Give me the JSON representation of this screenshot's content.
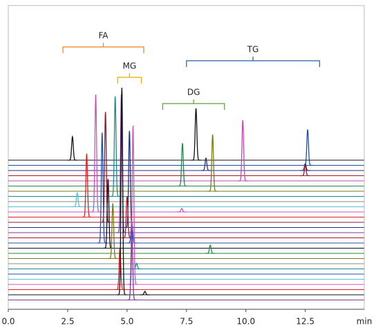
{
  "chart_data": {
    "type": "stacked-chromatogram",
    "xlabel": "min",
    "xlim": [
      0,
      15
    ],
    "xticks": [
      {
        "value": 0,
        "label": "0.0"
      },
      2.5,
      {
        "value": 5,
        "label": "5.0"
      },
      7.5,
      {
        "value": 10,
        "label": "10.0"
      },
      12.5
    ],
    "annotations": [
      {
        "text": "FA",
        "color": "#f07f1a",
        "range": [
          2.3,
          5.7
        ]
      },
      {
        "text": "TG",
        "color": "#1f5fa8",
        "range": [
          7.5,
          13.1
        ]
      },
      {
        "text": "MG",
        "color": "#f0a800",
        "range": [
          4.6,
          5.6
        ]
      },
      {
        "text": "DG",
        "color": "#5aa02c",
        "range": [
          6.5,
          9.1
        ]
      }
    ],
    "series": [
      {
        "color": "#111111",
        "peaks": [
          2.7,
          7.9
        ],
        "heights": [
          34,
          75
        ]
      },
      {
        "color": "#1f4fa0",
        "peaks": [
          12.6
        ],
        "heights": [
          52
        ]
      },
      {
        "color": "#23307a",
        "peaks": [
          8.32,
          12.5
        ],
        "heights": [
          18,
          10
        ]
      },
      {
        "color": "#a01c2c",
        "peaks": [
          12.5
        ],
        "heights": [
          15
        ]
      },
      {
        "color": "#c04ab0",
        "peaks": [
          9.87
        ],
        "heights": [
          88
        ]
      },
      {
        "color": "#1e8a4a",
        "peaks": [
          7.33
        ],
        "heights": [
          62
        ]
      },
      {
        "color": "#7a7a1a",
        "peaks": [
          8.6
        ],
        "heights": [
          82
        ]
      },
      {
        "color": "#1a8a8a",
        "peaks": [
          4.5
        ],
        "heights": [
          145
        ]
      },
      {
        "color": "#8a8a8a",
        "peaks": [],
        "heights": []
      },
      {
        "color": "#5ac0d8",
        "peaks": [
          2.9
        ],
        "heights": [
          20
        ]
      },
      {
        "color": "#d050c0",
        "peaks": [
          3.68,
          7.3
        ],
        "heights": [
          170,
          5
        ]
      },
      {
        "color": "#e02020",
        "peaks": [
          3.3
        ],
        "heights": [
          92
        ]
      },
      {
        "color": "#901830",
        "peaks": [
          4.09
        ],
        "heights": [
          160
        ]
      },
      {
        "color": "#203080",
        "peaks": [
          5.1
        ],
        "heights": [
          140
        ]
      },
      {
        "color": "#7a3aa0",
        "peaks": [
          4.76
        ],
        "heights": [
          200
        ]
      },
      {
        "color": "#a01c2c",
        "peaks": [
          5.0
        ],
        "heights": [
          60
        ]
      },
      {
        "color": "#2050b0",
        "peaks": [
          3.95,
          5.2
        ],
        "heights": [
          160,
          30
        ]
      },
      {
        "color": "#111111",
        "peaks": [
          4.2
        ],
        "heights": [
          100
        ]
      },
      {
        "color": "#1e8a4a",
        "peaks": [
          8.5
        ],
        "heights": [
          12
        ]
      },
      {
        "color": "#7a7a1a",
        "peaks": [
          4.4
        ],
        "heights": [
          80
        ]
      },
      {
        "color": "#8a8a8a",
        "peaks": [],
        "heights": []
      },
      {
        "color": "#1a8a8a",
        "peaks": [
          5.4
        ],
        "heights": [
          8
        ]
      },
      {
        "color": "#2050b0",
        "peaks": [],
        "heights": []
      },
      {
        "color": "#5ac0d8",
        "peaks": [],
        "heights": []
      },
      {
        "color": "#d050c0",
        "peaks": [
          5.25
        ],
        "heights": [
          230
        ]
      },
      {
        "color": "#e02020",
        "peaks": [
          4.7
        ],
        "heights": [
          60
        ]
      },
      {
        "color": "#111111",
        "peaks": [
          4.78,
          5.75
        ],
        "heights": [
          300,
          5
        ]
      },
      {
        "color": "#7a3aa0",
        "peaks": [
          5.2
        ],
        "heights": [
          100
        ]
      }
    ]
  }
}
